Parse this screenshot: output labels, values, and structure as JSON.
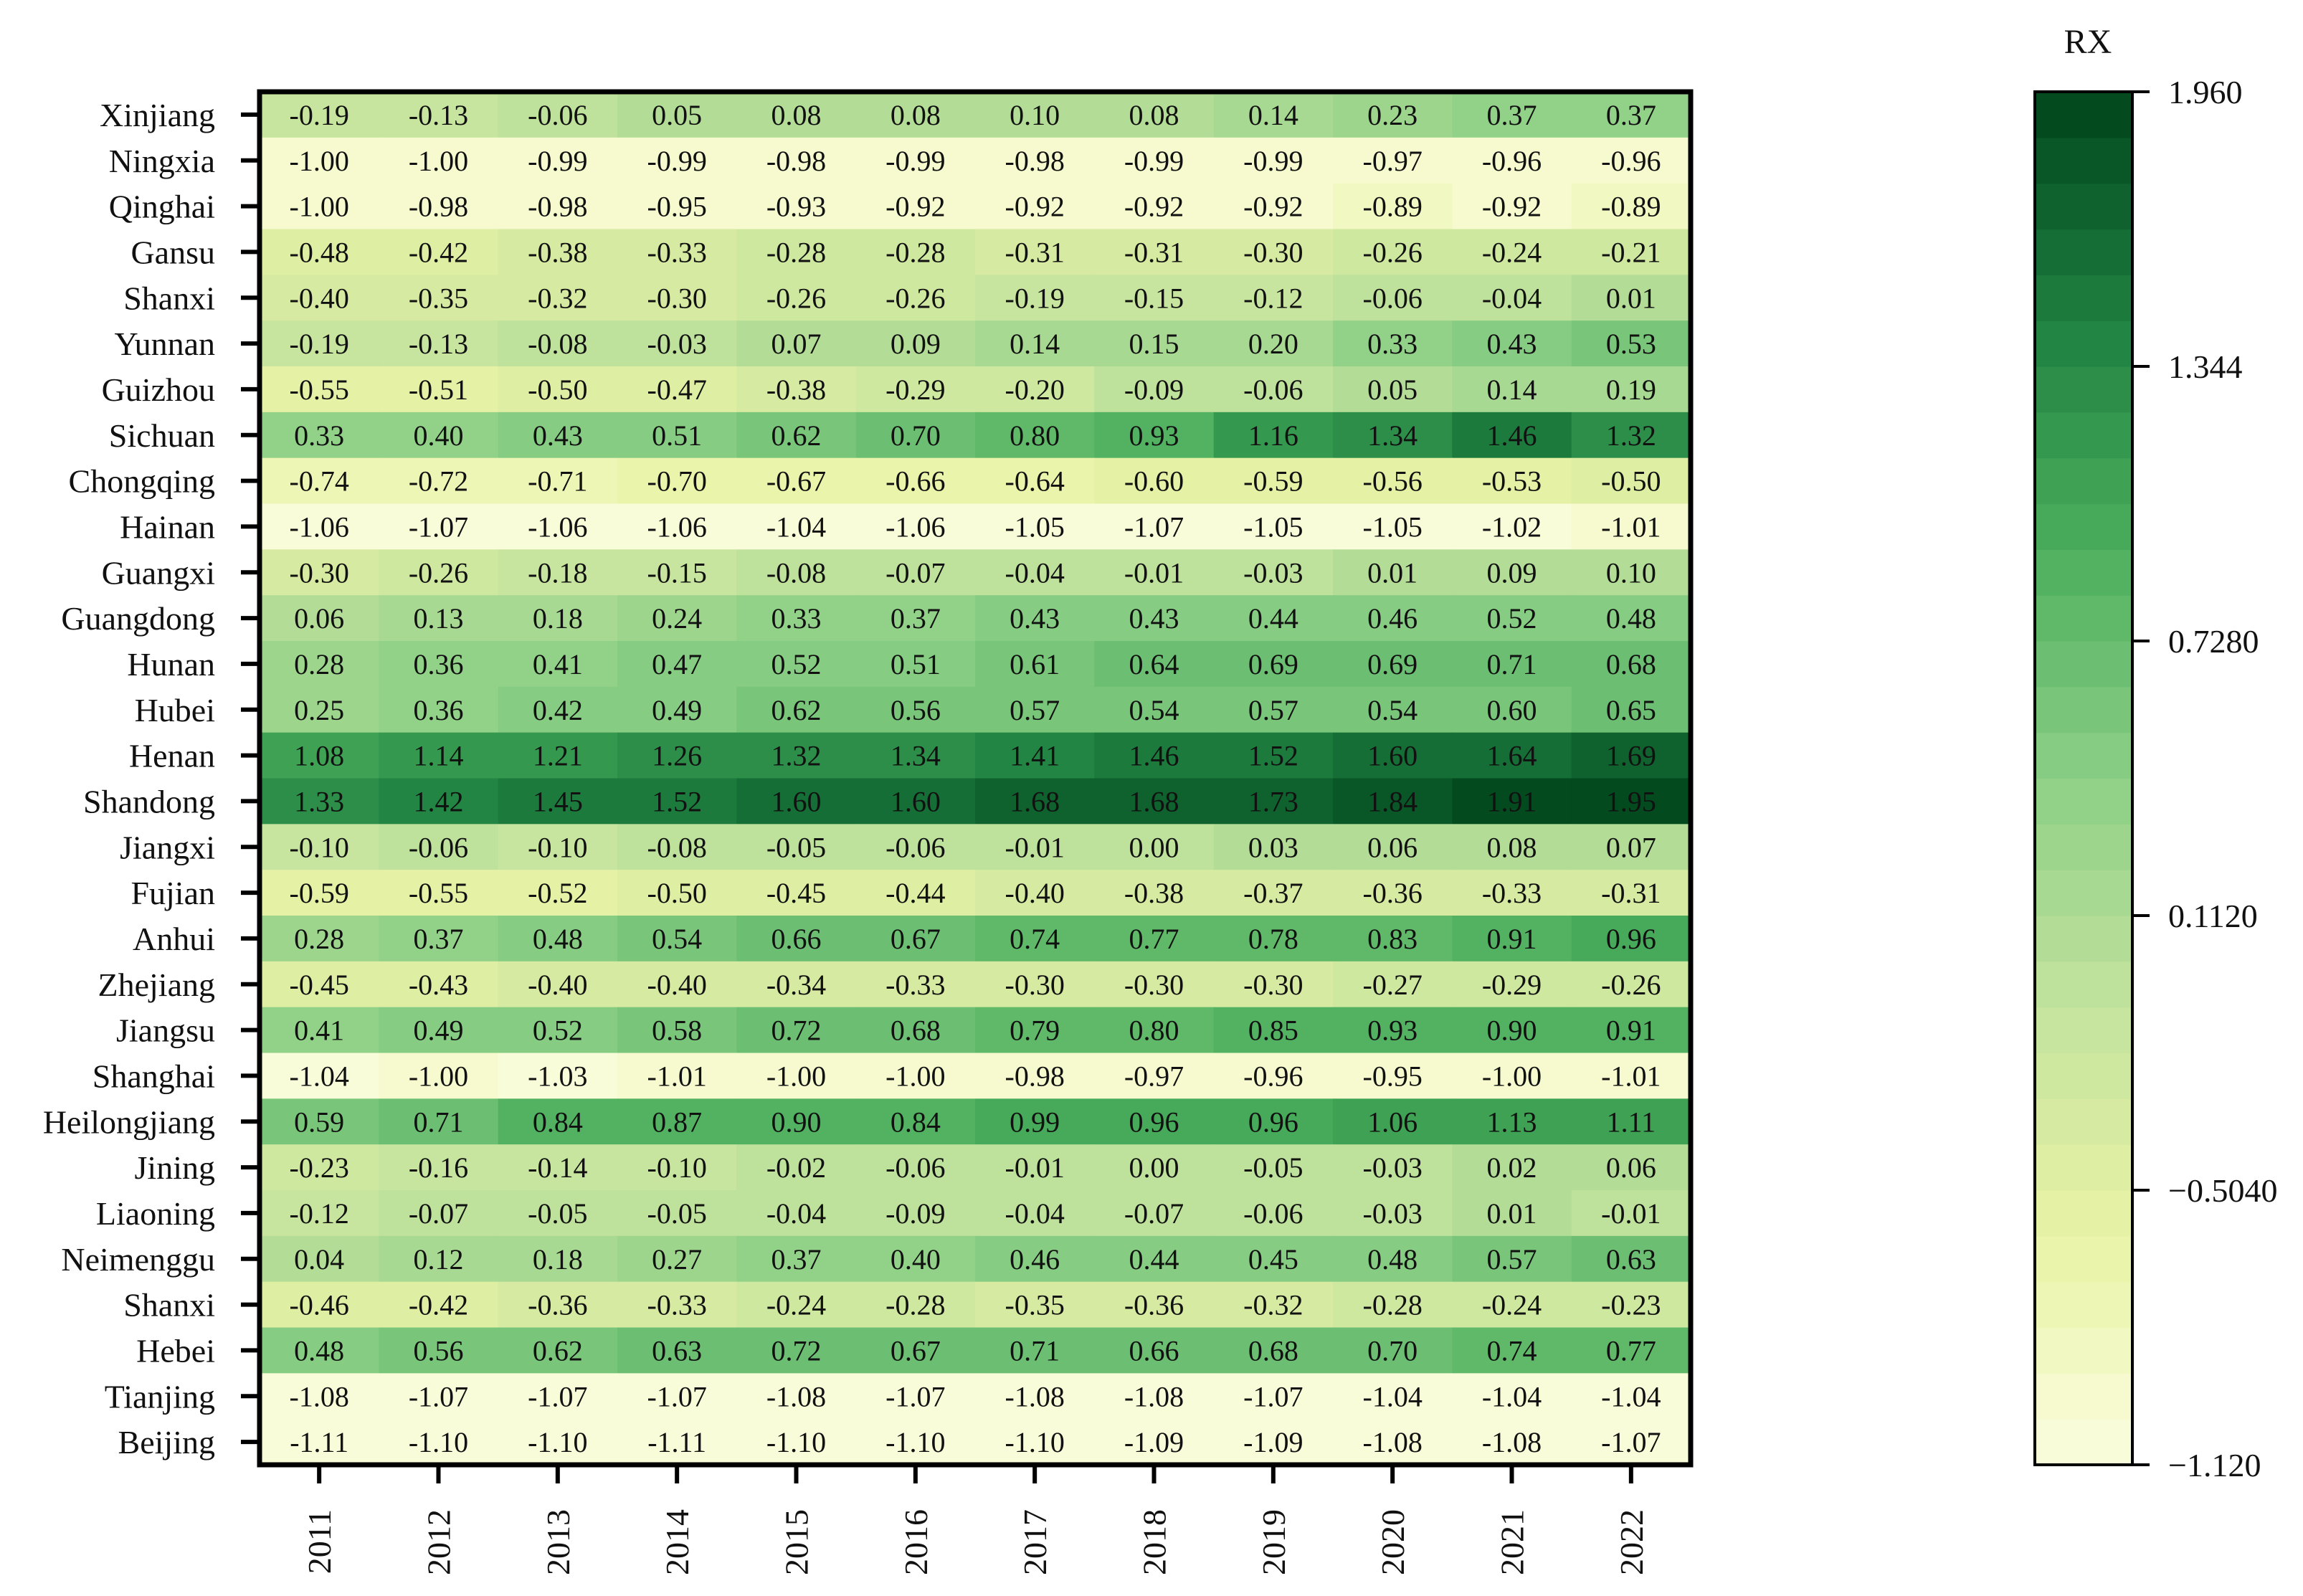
{
  "chart_data": {
    "type": "heatmap",
    "x": [
      "2011",
      "2012",
      "2013",
      "2014",
      "2015",
      "2016",
      "2017",
      "2018",
      "2019",
      "2020",
      "2021",
      "2022"
    ],
    "y": [
      "Xinjiang",
      "Ningxia",
      "Qinghai",
      "Gansu",
      "Shanxi",
      "Yunnan",
      "Guizhou",
      "Sichuan",
      "Chongqing",
      "Hainan",
      "Guangxi",
      "Guangdong",
      "Hunan",
      "Hubei",
      "Henan",
      "Shandong",
      "Jiangxi",
      "Fujian",
      "Anhui",
      "Zhejiang",
      "Jiangsu",
      "Shanghai",
      "Heilongjiang",
      "Jining",
      "Liaoning",
      "Neimenggu",
      "Shanxi",
      "Hebei",
      "Tianjing",
      "Beijing"
    ],
    "values": [
      [
        -0.19,
        -0.13,
        -0.06,
        0.05,
        0.08,
        0.08,
        0.1,
        0.08,
        0.14,
        0.23,
        0.37,
        0.37
      ],
      [
        -1.0,
        -1.0,
        -0.99,
        -0.99,
        -0.98,
        -0.99,
        -0.98,
        -0.99,
        -0.99,
        -0.97,
        -0.96,
        -0.96
      ],
      [
        -1.0,
        -0.98,
        -0.98,
        -0.95,
        -0.93,
        -0.92,
        -0.92,
        -0.92,
        -0.92,
        -0.89,
        -0.92,
        -0.89
      ],
      [
        -0.48,
        -0.42,
        -0.38,
        -0.33,
        -0.28,
        -0.28,
        -0.31,
        -0.31,
        -0.3,
        -0.26,
        -0.24,
        -0.21
      ],
      [
        -0.4,
        -0.35,
        -0.32,
        -0.3,
        -0.26,
        -0.26,
        -0.19,
        -0.15,
        -0.12,
        -0.06,
        -0.04,
        0.01
      ],
      [
        -0.19,
        -0.13,
        -0.08,
        -0.03,
        0.07,
        0.09,
        0.14,
        0.15,
        0.2,
        0.33,
        0.43,
        0.53
      ],
      [
        -0.55,
        -0.51,
        -0.5,
        -0.47,
        -0.38,
        -0.29,
        -0.2,
        -0.09,
        -0.06,
        0.05,
        0.14,
        0.19
      ],
      [
        0.33,
        0.4,
        0.43,
        0.51,
        0.62,
        0.7,
        0.8,
        0.93,
        1.16,
        1.34,
        1.46,
        1.32
      ],
      [
        -0.74,
        -0.72,
        -0.71,
        -0.7,
        -0.67,
        -0.66,
        -0.64,
        -0.6,
        -0.59,
        -0.56,
        -0.53,
        -0.5
      ],
      [
        -1.06,
        -1.07,
        -1.06,
        -1.06,
        -1.04,
        -1.06,
        -1.05,
        -1.07,
        -1.05,
        -1.05,
        -1.02,
        -1.01
      ],
      [
        -0.3,
        -0.26,
        -0.18,
        -0.15,
        -0.08,
        -0.07,
        -0.04,
        -0.01,
        -0.03,
        0.01,
        0.09,
        0.1
      ],
      [
        0.06,
        0.13,
        0.18,
        0.24,
        0.33,
        0.37,
        0.43,
        0.43,
        0.44,
        0.46,
        0.52,
        0.48
      ],
      [
        0.28,
        0.36,
        0.41,
        0.47,
        0.52,
        0.51,
        0.61,
        0.64,
        0.69,
        0.69,
        0.71,
        0.68
      ],
      [
        0.25,
        0.36,
        0.42,
        0.49,
        0.62,
        0.56,
        0.57,
        0.54,
        0.57,
        0.54,
        0.6,
        0.65
      ],
      [
        1.08,
        1.14,
        1.21,
        1.26,
        1.32,
        1.34,
        1.41,
        1.46,
        1.52,
        1.6,
        1.64,
        1.69
      ],
      [
        1.33,
        1.42,
        1.45,
        1.52,
        1.6,
        1.6,
        1.68,
        1.68,
        1.73,
        1.84,
        1.91,
        1.95
      ],
      [
        -0.1,
        -0.06,
        -0.1,
        -0.08,
        -0.05,
        -0.06,
        -0.01,
        -0.0,
        0.03,
        0.06,
        0.08,
        0.07
      ],
      [
        -0.59,
        -0.55,
        -0.52,
        -0.5,
        -0.45,
        -0.44,
        -0.4,
        -0.38,
        -0.37,
        -0.36,
        -0.33,
        -0.31
      ],
      [
        0.28,
        0.37,
        0.48,
        0.54,
        0.66,
        0.67,
        0.74,
        0.77,
        0.78,
        0.83,
        0.91,
        0.96
      ],
      [
        -0.45,
        -0.43,
        -0.4,
        -0.4,
        -0.34,
        -0.33,
        -0.3,
        -0.3,
        -0.3,
        -0.27,
        -0.29,
        -0.26
      ],
      [
        0.41,
        0.49,
        0.52,
        0.58,
        0.72,
        0.68,
        0.79,
        0.8,
        0.85,
        0.93,
        0.9,
        0.91
      ],
      [
        -1.04,
        -1.0,
        -1.03,
        -1.01,
        -1.0,
        -1.0,
        -0.98,
        -0.97,
        -0.96,
        -0.95,
        -1.0,
        -1.01
      ],
      [
        0.59,
        0.71,
        0.84,
        0.87,
        0.9,
        0.84,
        0.99,
        0.96,
        0.96,
        1.06,
        1.13,
        1.11
      ],
      [
        -0.23,
        -0.16,
        -0.14,
        -0.1,
        -0.02,
        -0.06,
        -0.01,
        0.0,
        -0.05,
        -0.03,
        0.02,
        0.06
      ],
      [
        -0.12,
        -0.07,
        -0.05,
        -0.05,
        -0.04,
        -0.09,
        -0.04,
        -0.07,
        -0.06,
        -0.03,
        0.01,
        -0.01
      ],
      [
        0.04,
        0.12,
        0.18,
        0.27,
        0.37,
        0.4,
        0.46,
        0.44,
        0.45,
        0.48,
        0.57,
        0.63
      ],
      [
        -0.46,
        -0.42,
        -0.36,
        -0.33,
        -0.24,
        -0.28,
        -0.35,
        -0.36,
        -0.32,
        -0.28,
        -0.24,
        -0.23
      ],
      [
        0.48,
        0.56,
        0.62,
        0.63,
        0.72,
        0.67,
        0.71,
        0.66,
        0.68,
        0.7,
        0.74,
        0.77
      ],
      [
        -1.08,
        -1.07,
        -1.07,
        -1.07,
        -1.08,
        -1.07,
        -1.08,
        -1.08,
        -1.07,
        -1.04,
        -1.04,
        -1.04
      ],
      [
        -1.11,
        -1.1,
        -1.1,
        -1.11,
        -1.1,
        -1.1,
        -1.1,
        -1.09,
        -1.09,
        -1.08,
        -1.08,
        -1.07
      ]
    ],
    "colorbar": {
      "title": "RX",
      "min": -1.12,
      "max": 1.96,
      "ticks": [
        -1.12,
        -0.504,
        0.112,
        0.728,
        1.344,
        1.96
      ],
      "tick_labels": [
        "−1.120",
        "−0.5040",
        "0.1120",
        "0.7280",
        "1.344",
        "1.960"
      ],
      "colors": [
        "#fbfddf",
        "#e9f3a5",
        "#c3e39d",
        "#8ccf86",
        "#4caf5d",
        "#1e8040",
        "#00441b"
      ],
      "bands": 30
    }
  }
}
